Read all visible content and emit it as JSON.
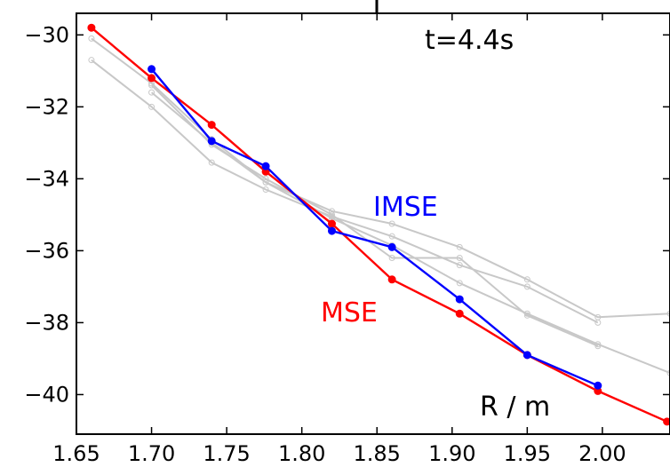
{
  "chart_data": {
    "type": "line",
    "title": "",
    "xlabel": "R / m",
    "ylabel": "",
    "xlim": [
      1.65,
      2.045
    ],
    "ylim": [
      -41.1,
      -29.4
    ],
    "xticks": [
      1.65,
      1.7,
      1.75,
      1.8,
      1.85,
      1.9,
      1.95,
      2.0
    ],
    "xtick_labels": [
      "1.65",
      "1.70",
      "1.75",
      "1.80",
      "1.85",
      "1.90",
      "1.95",
      "2.00"
    ],
    "yticks": [
      -30,
      -32,
      -34,
      -36,
      -38,
      -40
    ],
    "ytick_labels": [
      "−30",
      "−32",
      "−34",
      "−36",
      "−38",
      "−40"
    ],
    "grid": false,
    "annotations": {
      "time": "t=4.4s",
      "imse": "IMSE",
      "mse": "MSE",
      "xunit": "R / m"
    },
    "colors": {
      "mse": "#ff0000",
      "imse": "#0000ff",
      "other": "#c8c8c8"
    },
    "series": [
      {
        "name": "MSE",
        "color": "#ff0000",
        "x": [
          1.66,
          1.7,
          1.74,
          1.776,
          1.82,
          1.86,
          1.905,
          1.95,
          1.997,
          2.043
        ],
        "y": [
          -29.8,
          -31.2,
          -32.5,
          -33.8,
          -35.25,
          -36.8,
          -37.75,
          -38.9,
          -39.9,
          -40.75
        ]
      },
      {
        "name": "IMSE",
        "color": "#0000ff",
        "x": [
          1.7,
          1.74,
          1.776,
          1.82,
          1.86,
          1.905,
          1.95,
          1.997
        ],
        "y": [
          -30.95,
          -32.95,
          -33.65,
          -35.45,
          -35.9,
          -37.35,
          -38.9,
          -39.75
        ]
      },
      {
        "color": "#c8c8c8",
        "x": [
          1.66,
          1.7,
          1.74,
          1.776,
          1.82,
          1.86,
          1.905,
          1.95,
          1.997,
          2.045
        ],
        "y": [
          -30.1,
          -31.35,
          -32.9,
          -34.1,
          -34.9,
          -35.25,
          -35.9,
          -36.8,
          -37.85,
          -37.75
        ]
      },
      {
        "color": "#c8c8c8",
        "x": [
          1.66,
          1.7,
          1.74,
          1.776,
          1.82,
          1.86,
          1.905,
          1.95,
          1.997
        ],
        "y": [
          -30.7,
          -32.0,
          -33.55,
          -34.3,
          -35.05,
          -35.6,
          -36.4,
          -37.0,
          -38.0
        ]
      },
      {
        "color": "#c8c8c8",
        "x": [
          1.7,
          1.74,
          1.776,
          1.82,
          1.86,
          1.905,
          1.95,
          1.997,
          2.045
        ],
        "y": [
          -31.6,
          -33.0,
          -34.1,
          -35.1,
          -35.85,
          -36.9,
          -37.75,
          -38.6,
          -39.4
        ]
      },
      {
        "color": "#c8c8c8",
        "x": [
          1.7,
          1.74,
          1.776,
          1.82,
          1.86,
          1.905,
          1.95,
          1.997
        ],
        "y": [
          -31.4,
          -33.05,
          -34.0,
          -35.0,
          -36.2,
          -36.2,
          -37.8,
          -38.65
        ]
      }
    ]
  }
}
